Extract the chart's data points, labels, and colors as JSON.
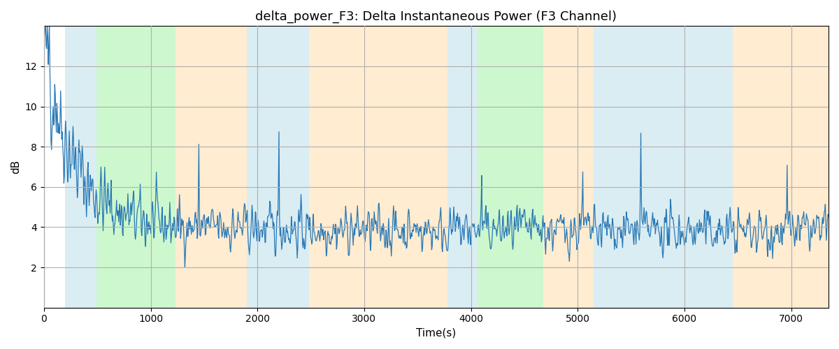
{
  "title": "delta_power_F3: Delta Instantaneous Power (F3 Channel)",
  "xlabel": "Time(s)",
  "ylabel": "dB",
  "xlim": [
    0,
    7350
  ],
  "ylim": [
    0,
    14
  ],
  "yticks": [
    2,
    4,
    6,
    8,
    10,
    12
  ],
  "xticks": [
    0,
    1000,
    2000,
    3000,
    4000,
    5000,
    6000,
    7000
  ],
  "line_color": "#2878b5",
  "line_width": 0.9,
  "grid_color": "#b0b0b0",
  "bg_color": "#ffffff",
  "title_fontsize": 13,
  "axis_label_fontsize": 11,
  "bands": [
    {
      "xmin": 200,
      "xmax": 490,
      "color": "#add8e6",
      "alpha": 0.45
    },
    {
      "xmin": 490,
      "xmax": 1230,
      "color": "#90ee90",
      "alpha": 0.45
    },
    {
      "xmin": 1230,
      "xmax": 1900,
      "color": "#ffd59b",
      "alpha": 0.45
    },
    {
      "xmin": 1900,
      "xmax": 2480,
      "color": "#add8e6",
      "alpha": 0.45
    },
    {
      "xmin": 2480,
      "xmax": 3780,
      "color": "#ffd59b",
      "alpha": 0.45
    },
    {
      "xmin": 3780,
      "xmax": 4060,
      "color": "#add8e6",
      "alpha": 0.45
    },
    {
      "xmin": 4060,
      "xmax": 4680,
      "color": "#90ee90",
      "alpha": 0.45
    },
    {
      "xmin": 4680,
      "xmax": 5150,
      "color": "#ffd59b",
      "alpha": 0.45
    },
    {
      "xmin": 5150,
      "xmax": 6450,
      "color": "#add8e6",
      "alpha": 0.45
    },
    {
      "xmin": 6450,
      "xmax": 7350,
      "color": "#ffd59b",
      "alpha": 0.45
    }
  ],
  "seed": 42,
  "n_points": 1460
}
